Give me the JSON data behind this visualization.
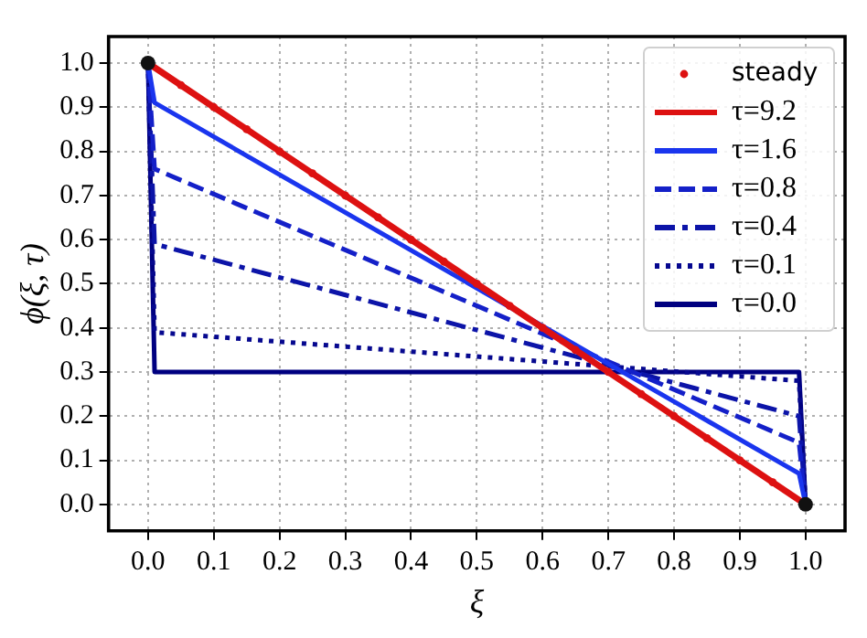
{
  "chart_data": {
    "type": "line",
    "xlabel": "ξ",
    "ylabel": "ϕ(ξ, τ)",
    "xlim": [
      -0.06,
      1.06
    ],
    "ylim": [
      -0.06,
      1.06
    ],
    "xticks": [
      {
        "value": 0,
        "label": "0.0"
      },
      0.1,
      0.2,
      0.3,
      0.4,
      0.5,
      0.6,
      0.7,
      0.8,
      0.9,
      {
        "value": 1,
        "label": "1.0"
      }
    ],
    "yticks": [
      {
        "value": 0,
        "label": "0.0"
      },
      0.1,
      0.2,
      0.3,
      0.4,
      0.5,
      0.6,
      0.7,
      0.8,
      0.9,
      {
        "value": 1,
        "label": "1.0"
      }
    ],
    "grid": true,
    "legend": "top right",
    "series": [
      {
        "name": "steady",
        "type": "scatter",
        "marker": "circle",
        "color": "#dd1111",
        "x": [
          0.05,
          0.1,
          0.15,
          0.2,
          0.25,
          0.3,
          0.35,
          0.4,
          0.45,
          0.5,
          0.55,
          0.6,
          0.65,
          0.7,
          0.75,
          0.8,
          0.85,
          0.9,
          0.95
        ],
        "values": [
          0.95,
          0.9,
          0.85,
          0.8,
          0.75,
          0.7,
          0.65,
          0.6,
          0.55,
          0.5,
          0.45,
          0.4,
          0.35,
          0.3,
          0.25,
          0.2,
          0.15,
          0.1,
          0.05
        ]
      },
      {
        "name": "τ=9.2",
        "line_style": "solid",
        "color": "#dd1111",
        "x": [
          0,
          1
        ],
        "values": [
          1,
          0
        ]
      },
      {
        "name": "τ=1.6",
        "line_style": "solid",
        "color": "#1a35ee",
        "x": [
          0,
          0.01,
          0.99,
          1
        ],
        "values": [
          1,
          0.91,
          0.07,
          0
        ]
      },
      {
        "name": "τ=0.8",
        "line_style": "dashed",
        "color": "#1420c8",
        "x": [
          0,
          0.01,
          0.99,
          1
        ],
        "values": [
          1,
          0.76,
          0.14,
          0
        ]
      },
      {
        "name": "τ=0.4",
        "line_style": "dashdot",
        "color": "#0c14a8",
        "x": [
          0,
          0.01,
          0.99,
          1
        ],
        "values": [
          1,
          0.59,
          0.2,
          0
        ]
      },
      {
        "name": "τ=0.1",
        "line_style": "dotted",
        "color": "#06088f",
        "x": [
          0,
          0.01,
          0.99,
          1
        ],
        "values": [
          1,
          0.39,
          0.28,
          0
        ]
      },
      {
        "name": "τ=0.0",
        "line_style": "solid",
        "color": "#000080",
        "x": [
          0,
          0.01,
          0.99,
          1
        ],
        "values": [
          1,
          0.3,
          0.3,
          0
        ]
      },
      {
        "type": "scatter",
        "marker": "circle",
        "color": "#111111",
        "x": [
          0,
          1
        ],
        "values": [
          1,
          0
        ]
      }
    ]
  }
}
